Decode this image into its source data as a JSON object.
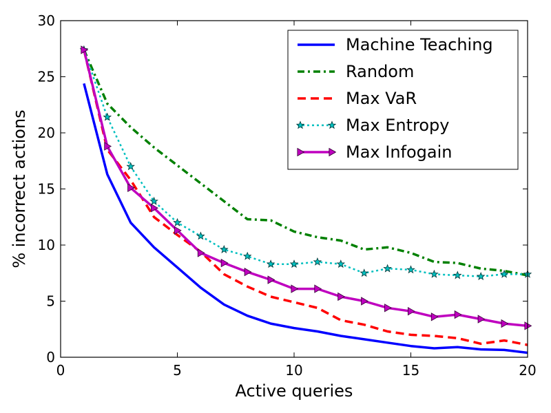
{
  "chart_data": {
    "type": "line",
    "xlabel": "Active queries",
    "ylabel": "% incorrect actions",
    "xlim": [
      0,
      20
    ],
    "ylim": [
      0,
      30
    ],
    "xticks": [
      0,
      5,
      10,
      15,
      20
    ],
    "yticks": [
      0,
      5,
      10,
      15,
      20,
      25,
      30
    ],
    "grid": false,
    "legend_position": "top-right",
    "x": [
      1,
      2,
      3,
      4,
      5,
      6,
      7,
      8,
      9,
      10,
      11,
      12,
      13,
      14,
      15,
      16,
      17,
      18,
      19,
      20
    ],
    "series": [
      {
        "name": "Machine Teaching",
        "color": "#0000ff",
        "style": "solid",
        "marker": "none",
        "values": [
          24.4,
          16.3,
          12.0,
          9.8,
          8.0,
          6.2,
          4.7,
          3.7,
          3.0,
          2.6,
          2.3,
          1.9,
          1.6,
          1.3,
          1.0,
          0.8,
          0.9,
          0.7,
          0.65,
          0.4
        ]
      },
      {
        "name": "Random",
        "color": "#008000",
        "style": "dashdot",
        "marker": "none",
        "values": [
          27.4,
          22.6,
          20.5,
          18.7,
          17.1,
          15.5,
          13.9,
          12.3,
          12.2,
          11.2,
          10.7,
          10.4,
          9.6,
          9.8,
          9.3,
          8.5,
          8.4,
          7.9,
          7.7,
          7.3
        ]
      },
      {
        "name": "Max VaR",
        "color": "#ff0000",
        "style": "dashed",
        "marker": "none",
        "values": [
          27.4,
          18.5,
          15.8,
          12.5,
          10.9,
          9.4,
          7.4,
          6.3,
          5.4,
          4.9,
          4.4,
          3.3,
          2.9,
          2.3,
          2.0,
          1.9,
          1.7,
          1.2,
          1.5,
          1.1
        ]
      },
      {
        "name": "Max Entropy",
        "color": "#00bfbf",
        "style": "dotted",
        "marker": "star",
        "values": [
          27.4,
          21.4,
          17.0,
          13.9,
          12.0,
          10.8,
          9.6,
          9.0,
          8.3,
          8.3,
          8.5,
          8.3,
          7.5,
          7.9,
          7.8,
          7.4,
          7.3,
          7.2,
          7.4,
          7.4
        ]
      },
      {
        "name": "Max Infogain",
        "color": "#bf00bf",
        "style": "solid",
        "marker": "triangle-right",
        "values": [
          27.4,
          18.8,
          15.1,
          13.3,
          11.3,
          9.3,
          8.4,
          7.6,
          6.9,
          6.1,
          6.1,
          5.4,
          5.0,
          4.4,
          4.1,
          3.6,
          3.8,
          3.4,
          3.0,
          2.8
        ]
      }
    ]
  }
}
